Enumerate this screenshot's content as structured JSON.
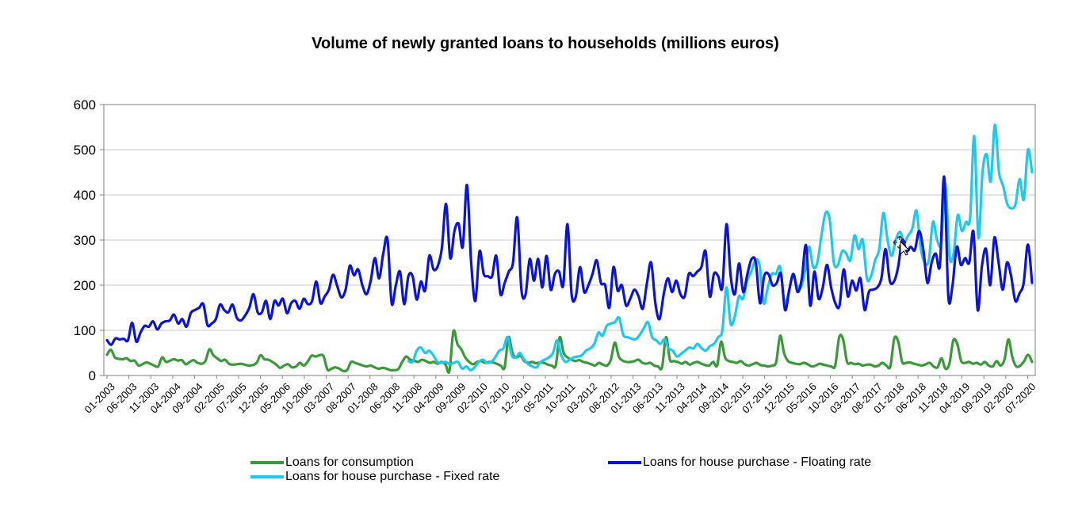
{
  "chart_data": {
    "type": "line",
    "title": "Volume of newly granted loans to households (millions euros)",
    "xlabel": "",
    "ylabel": "",
    "ylim": [
      0,
      600
    ],
    "yticks": [
      "0",
      "100",
      "200",
      "300",
      "400",
      "500",
      "600"
    ],
    "grid": true,
    "legend_position": "bottom",
    "x_tick_labels": [
      "01-2003",
      "06-2003",
      "11-2003",
      "04-2004",
      "09-2004",
      "02-2005",
      "07-2005",
      "12-2005",
      "05-2006",
      "10-2006",
      "03-2007",
      "08-2007",
      "01-2008",
      "06-2008",
      "11-2008",
      "04-2009",
      "09-2009",
      "02-2010",
      "07-2010",
      "12-2010",
      "05-2011",
      "10-2011",
      "03-2012",
      "08-2012",
      "01-2013",
      "06-2013",
      "11-2013",
      "04-2014",
      "09-2014",
      "02-2015",
      "07-2015",
      "12-2015",
      "05-2016",
      "10-2016",
      "03-2017",
      "08-2017",
      "01-2018",
      "06-2018",
      "11-2018",
      "04-2019",
      "09-2019",
      "02-2020",
      "07-2020"
    ],
    "x_start": "01-2003",
    "x_end": "08-2020",
    "series": [
      {
        "name": "Loans for consumption",
        "color": "#3a9a3a",
        "values": [
          46,
          57,
          40,
          37,
          36,
          38,
          32,
          33,
          22,
          25,
          29,
          26,
          22,
          20,
          40,
          30,
          33,
          36,
          33,
          34,
          25,
          30,
          34,
          28,
          26,
          32,
          58,
          45,
          38,
          32,
          35,
          26,
          24,
          25,
          26,
          24,
          22,
          23,
          28,
          45,
          36,
          35,
          30,
          24,
          17,
          22,
          25,
          18,
          20,
          28,
          22,
          31,
          44,
          42,
          45,
          43,
          13,
          15,
          18,
          15,
          10,
          12,
          30,
          28,
          25,
          22,
          20,
          22,
          18,
          15,
          17,
          15,
          12,
          12,
          14,
          30,
          42,
          35,
          33,
          30,
          35,
          32,
          28,
          30,
          26,
          30,
          24,
          10,
          98,
          70,
          58,
          40,
          30,
          25,
          30,
          32,
          28,
          30,
          29,
          26,
          22,
          18,
          85,
          50,
          40,
          44,
          32,
          28,
          30,
          27,
          29,
          28,
          24,
          22,
          22,
          85,
          50,
          40,
          35,
          32,
          34,
          30,
          28,
          25,
          22,
          28,
          24,
          22,
          35,
          73,
          42,
          33,
          30,
          30,
          32,
          35,
          28,
          26,
          28,
          22,
          20,
          18,
          85,
          35,
          32,
          30,
          26,
          30,
          24,
          28,
          30,
          26,
          23,
          22,
          30,
          22,
          75,
          40,
          32,
          30,
          28,
          32,
          25,
          22,
          25,
          28,
          23,
          22,
          20,
          22,
          30,
          88,
          50,
          32,
          28,
          26,
          25,
          28,
          25,
          20,
          22,
          26,
          24,
          22,
          20,
          22,
          85,
          80,
          30,
          28,
          25,
          26,
          22,
          24,
          24,
          20,
          22,
          28,
          22,
          20,
          82,
          75,
          30,
          28,
          29,
          26,
          24,
          22,
          25,
          28,
          20,
          18,
          38,
          15,
          26,
          78,
          70,
          32,
          28,
          30,
          26,
          28,
          24,
          30,
          22,
          20,
          32,
          22,
          35,
          80,
          40,
          20,
          22,
          32,
          46,
          30
        ]
      },
      {
        "name": "Loans for house purchase - Floating rate",
        "color": "#0a14d8",
        "values": [
          78,
          68,
          82,
          80,
          81,
          78,
          117,
          75,
          95,
          110,
          108,
          120,
          102,
          115,
          120,
          122,
          135,
          115,
          125,
          108,
          138,
          145,
          150,
          158,
          112,
          115,
          125,
          157,
          145,
          140,
          157,
          128,
          122,
          133,
          150,
          180,
          140,
          140,
          165,
          125,
          165,
          155,
          170,
          138,
          160,
          165,
          148,
          170,
          158,
          165,
          208,
          160,
          175,
          190,
          223,
          198,
          173,
          190,
          243,
          222,
          235,
          200,
          180,
          210,
          260,
          215,
          270,
          302,
          160,
          200,
          230,
          158,
          220,
          220,
          168,
          208,
          188,
          265,
          235,
          242,
          282,
          380,
          260,
          320,
          336,
          285,
          422,
          250,
          165,
          275,
          225,
          220,
          220,
          265,
          180,
          205,
          230,
          250,
          350,
          190,
          180,
          258,
          210,
          258,
          195,
          265,
          190,
          225,
          230,
          200,
          335,
          180,
          175,
          240,
          185,
          200,
          225,
          255,
          205,
          200,
          150,
          240,
          188,
          200,
          155,
          170,
          190,
          175,
          148,
          205,
          250,
          160,
          125,
          180,
          215,
          185,
          210,
          180,
          175,
          225,
          220,
          230,
          240,
          275,
          175,
          225,
          220,
          195,
          335,
          220,
          180,
          248,
          185,
          225,
          258,
          250,
          160,
          220,
          225,
          200,
          205,
          225,
          145,
          190,
          225,
          185,
          215,
          288,
          155,
          230,
          170,
          195,
          245,
          195,
          160,
          155,
          235,
          175,
          210,
          188,
          215,
          145,
          185,
          190,
          195,
          215,
          280,
          210,
          208,
          240,
          300,
          275,
          285,
          278,
          320,
          280,
          205,
          250,
          270,
          245,
          440,
          175,
          200,
          285,
          245,
          260,
          250,
          318,
          145,
          240,
          280,
          200,
          305,
          250,
          190,
          250,
          220,
          165,
          182,
          205,
          290,
          205
        ]
      },
      {
        "name": "Loans for house purchase - Fixed rate",
        "color": "#1ec8f0",
        "values": [
          null,
          null,
          null,
          null,
          null,
          null,
          null,
          null,
          null,
          null,
          null,
          null,
          null,
          null,
          null,
          null,
          null,
          null,
          null,
          null,
          null,
          null,
          null,
          null,
          null,
          null,
          null,
          null,
          null,
          null,
          null,
          null,
          null,
          null,
          null,
          null,
          null,
          null,
          null,
          null,
          null,
          null,
          null,
          null,
          null,
          null,
          null,
          null,
          null,
          null,
          null,
          null,
          null,
          null,
          null,
          null,
          null,
          null,
          null,
          null,
          null,
          null,
          null,
          null,
          null,
          null,
          null,
          null,
          null,
          null,
          null,
          null,
          null,
          32,
          30,
          55,
          62,
          50,
          55,
          45,
          30,
          28,
          30,
          25,
          28,
          30,
          15,
          20,
          12,
          18,
          30,
          35,
          28,
          30,
          40,
          55,
          60,
          85,
          45,
          40,
          50,
          35,
          25,
          20,
          18,
          30,
          35,
          40,
          50,
          78,
          45,
          30,
          35,
          40,
          42,
          45,
          55,
          60,
          70,
          95,
          88,
          110,
          115,
          118,
          128,
          90,
          85,
          82,
          80,
          90,
          105,
          118,
          85,
          78,
          70,
          80,
          60,
          55,
          42,
          48,
          55,
          62,
          60,
          70,
          60,
          55,
          65,
          70,
          85,
          100,
          195,
          115,
          130,
          175,
          170,
          210,
          230,
          255,
          245,
          160,
          195,
          225,
          225,
          240,
          165,
          180,
          220,
          200,
          195,
          230,
          285,
          240,
          250,
          310,
          360,
          345,
          250,
          245,
          275,
          270,
          255,
          310,
          280,
          300,
          215,
          220,
          255,
          280,
          360,
          300,
          265,
          300,
          318,
          295,
          310,
          325,
          365,
          285,
          250,
          255,
          340,
          300,
          295,
          425,
          265,
          270,
          355,
          320,
          340,
          350,
          530,
          305,
          450,
          490,
          430,
          555,
          450,
          420,
          380,
          370,
          380,
          435,
          390,
          500,
          450
        ]
      }
    ]
  },
  "legend": {
    "consumption": "Loans for consumption",
    "floating": "Loans for house purchase - Floating rate",
    "fixed": "Loans for house purchase - Fixed rate"
  },
  "colors": {
    "consumption": "#3a9a3a",
    "floating": "#0a14d8",
    "fixed": "#1ec8f0",
    "grid": "#c8c8c8",
    "axis": "#808080"
  }
}
